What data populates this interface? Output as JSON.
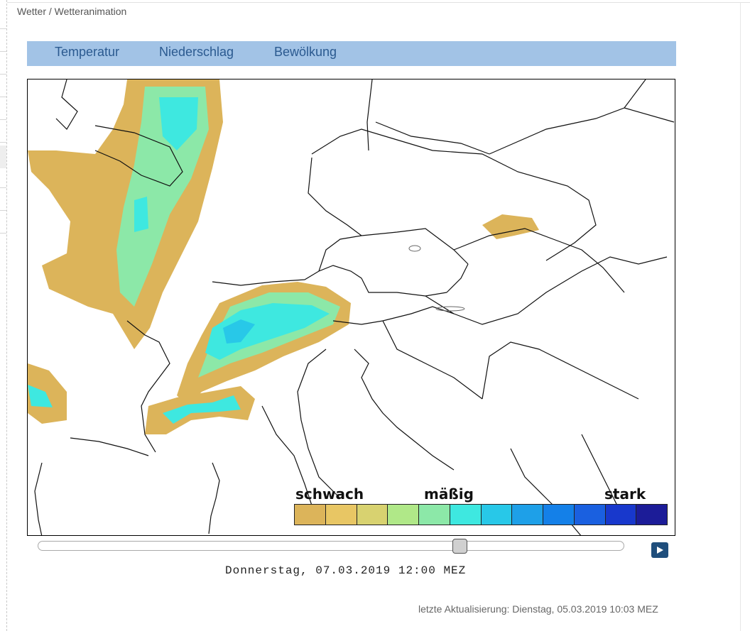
{
  "breadcrumb": "Wetter / Wetteranimation",
  "tabs": [
    {
      "label": "Temperatur"
    },
    {
      "label": "Niederschlag"
    },
    {
      "label": "Bewölkung"
    }
  ],
  "legend": {
    "labels": {
      "low": "schwach",
      "mid": "mäßig",
      "high": "stark"
    },
    "colors": [
      "#dcb45a",
      "#e8c664",
      "#d8d270",
      "#b0e888",
      "#8ce8a8",
      "#3ee8e0",
      "#28c8e8",
      "#1ea0e8",
      "#1480e8",
      "#1a60e0",
      "#1838cc",
      "#1c1c98"
    ]
  },
  "player": {
    "datetime": "Donnerstag, 07.03.2019 12:00 MEZ",
    "position": 0.72,
    "play_icon": "play-icon"
  },
  "footer": {
    "updated": "letzte Aktualisierung: Dienstag, 05.03.2019 10:03 MEZ"
  }
}
